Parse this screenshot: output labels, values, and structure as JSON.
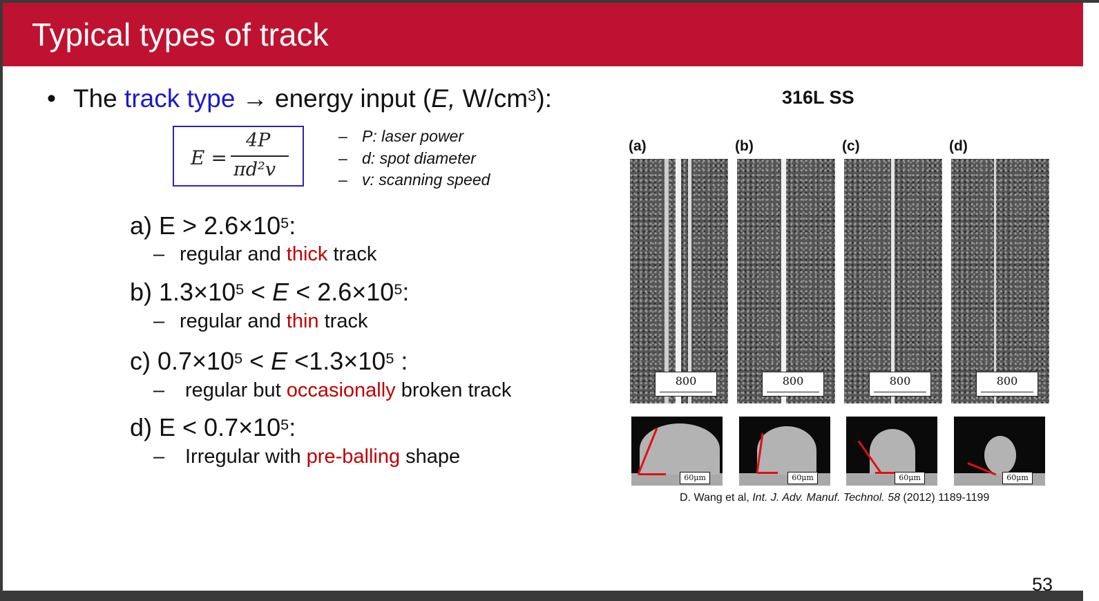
{
  "slide": {
    "title": "Typical types of track",
    "bullet": {
      "prefix": "The ",
      "highlight": "track type",
      "arrow": "→",
      "middle": " energy input (",
      "symbol": "E,",
      "unit": " W/cm",
      "unit_exp": "3",
      "suffix": "):"
    },
    "formula": {
      "lhs": "E =",
      "numerator": "4P",
      "denominator": "πd²v"
    },
    "definitions": [
      {
        "dash": "–",
        "text": "P: laser power"
      },
      {
        "dash": "–",
        "text": "d: spot diameter"
      },
      {
        "dash": "–",
        "text": "v: scanning speed"
      }
    ],
    "cases": [
      {
        "heading": "a) E > 2.6×10",
        "heading_exp": "5",
        "heading_tail": ":",
        "dash": "–",
        "desc_pre": "regular and ",
        "desc_hl": "thick",
        "desc_post": " track"
      },
      {
        "heading": "b) 1.3×10",
        "heading_exp": "5",
        "heading_mid": " < ",
        "heading_e": "E",
        "heading_mid2": " < 2.6×10",
        "heading_exp2": "5",
        "heading_tail": ":",
        "dash": "–",
        "desc_pre": "regular and ",
        "desc_hl": "thin",
        "desc_post": " track"
      },
      {
        "heading": "c) 0.7×10",
        "heading_exp": "5",
        "heading_mid": " < ",
        "heading_e": "E",
        "heading_mid2": " <1.3×10",
        "heading_exp2": "5",
        "heading_tail": " :",
        "dash": "–",
        "desc_pre": "regular but ",
        "desc_hl": "occasionally",
        "desc_post": " broken track"
      },
      {
        "heading": "d) E < 0.7×10",
        "heading_exp": "5",
        "heading_tail": ":",
        "dash": "–",
        "desc_pre": "Irregular with ",
        "desc_hl": "pre-balling",
        "desc_post": " shape"
      }
    ],
    "figure": {
      "material": "316L SS",
      "panels": [
        {
          "letter": "(a)",
          "scale": "800",
          "cross_scale": "60μm"
        },
        {
          "letter": "(b)",
          "scale": "800",
          "cross_scale": "60μm"
        },
        {
          "letter": "(c)",
          "scale": "800",
          "cross_scale": "60μm"
        },
        {
          "letter": "(d)",
          "scale": "800",
          "cross_scale": "60μm"
        }
      ],
      "citation": {
        "authors": "D. Wang et al, ",
        "journal": "Int. J. Adv. Manuf. Technol. 58",
        "rest": " (2012) 1189-1199"
      }
    },
    "page_number": "53"
  },
  "colors": {
    "title_bar": "#be1230",
    "highlight_blue": "#1a1ac8",
    "highlight_red": "#c00000",
    "formula_border": "#2626b8"
  }
}
